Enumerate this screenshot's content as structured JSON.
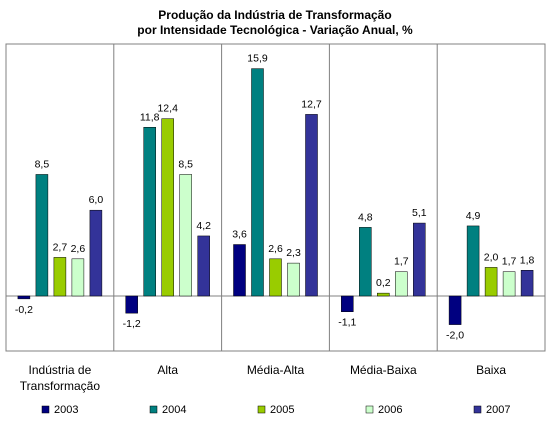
{
  "chart_data": {
    "type": "bar",
    "title": "Produção da Indústria de Transformação",
    "subtitle": "por Intensidade Tecnológica -  Variação Anual, %",
    "categories": [
      [
        "Indústria de",
        "Transformação"
      ],
      [
        "Alta"
      ],
      [
        "Média-Alta"
      ],
      [
        "Média-Baixa"
      ],
      [
        "Baixa"
      ]
    ],
    "series": [
      {
        "name": "2003",
        "color": "#000080",
        "values": [
          -0.2,
          -1.2,
          3.6,
          -1.1,
          -2.0
        ]
      },
      {
        "name": "2004",
        "color": "#008080",
        "values": [
          8.5,
          11.8,
          15.9,
          4.8,
          4.9
        ]
      },
      {
        "name": "2005",
        "color": "#99CC00",
        "values": [
          2.7,
          12.4,
          2.6,
          0.2,
          2.0
        ]
      },
      {
        "name": "2006",
        "color": "#CCFFCC",
        "values": [
          2.6,
          8.5,
          2.3,
          1.7,
          1.7
        ]
      },
      {
        "name": "2007",
        "color": "#333399",
        "values": [
          6.0,
          4.2,
          12.7,
          5.1,
          1.8
        ]
      }
    ],
    "ylim": [
      -4.5,
      18
    ],
    "grid": false,
    "legend": "bottom"
  }
}
